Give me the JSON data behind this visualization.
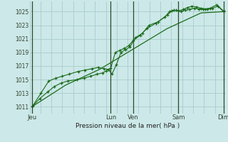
{
  "background_color": "#cce8e8",
  "grid_color": "#aacccc",
  "line_color": "#1a6b1a",
  "title": "Pression niveau de la mer( hPa )",
  "ylim": [
    1010.0,
    1026.5
  ],
  "yticks": [
    1011,
    1013,
    1015,
    1017,
    1019,
    1021,
    1023,
    1025
  ],
  "x_day_labels": [
    "Jeu",
    "Lun",
    "Ven",
    "Sam",
    "Dim"
  ],
  "x_day_positions": [
    0,
    3.5,
    4.5,
    6.5,
    8.5
  ],
  "vertical_lines_x": [
    0,
    3.5,
    4.5,
    6.5,
    8.5
  ],
  "xlim": [
    -0.1,
    8.6
  ],
  "series1_x": [
    0,
    0.35,
    0.7,
    1.0,
    1.3,
    1.6,
    2.0,
    2.3,
    2.6,
    2.9,
    3.15,
    3.3,
    3.5,
    3.7,
    3.9,
    4.1,
    4.3,
    4.5,
    4.8,
    5.1,
    5.5,
    5.9,
    6.1,
    6.3,
    6.5,
    6.7,
    6.9,
    7.1,
    7.3,
    7.5,
    7.7,
    7.9,
    8.2,
    8.5
  ],
  "series1_y": [
    1011.0,
    1012.2,
    1013.2,
    1014.0,
    1014.5,
    1014.8,
    1015.0,
    1015.2,
    1015.5,
    1015.8,
    1016.0,
    1016.3,
    1016.7,
    1019.0,
    1019.3,
    1019.6,
    1020.0,
    1020.8,
    1021.5,
    1022.5,
    1023.3,
    1024.2,
    1025.0,
    1025.2,
    1025.1,
    1025.3,
    1025.6,
    1025.8,
    1025.7,
    1025.5,
    1025.4,
    1025.5,
    1026.0,
    1025.1
  ],
  "series2_x": [
    0.05,
    0.4,
    0.75,
    1.05,
    1.35,
    1.65,
    2.05,
    2.35,
    2.65,
    2.95,
    3.2,
    3.4,
    3.55,
    3.75,
    3.95,
    4.15,
    4.35,
    4.6,
    4.9,
    5.2,
    5.6,
    6.0,
    6.2,
    6.4,
    6.6,
    6.8,
    7.0,
    7.2,
    7.4,
    7.6,
    7.8,
    8.0,
    8.25,
    8.5
  ],
  "series2_y": [
    1011.2,
    1013.0,
    1014.8,
    1015.2,
    1015.5,
    1015.8,
    1016.2,
    1016.4,
    1016.6,
    1016.8,
    1016.6,
    1016.5,
    1015.8,
    1017.2,
    1019.0,
    1019.4,
    1019.8,
    1021.2,
    1021.8,
    1023.0,
    1023.5,
    1024.5,
    1025.1,
    1025.2,
    1025.0,
    1025.2,
    1025.3,
    1025.5,
    1025.4,
    1025.3,
    1025.4,
    1025.5,
    1025.8,
    1025.0
  ],
  "series3_x": [
    0,
    1.5,
    3.0,
    4.5,
    6.0,
    7.5,
    8.5
  ],
  "series3_y": [
    1011.0,
    1014.2,
    1016.5,
    1019.5,
    1022.5,
    1024.8,
    1025.0
  ],
  "figsize": [
    3.2,
    2.0
  ],
  "dpi": 100
}
